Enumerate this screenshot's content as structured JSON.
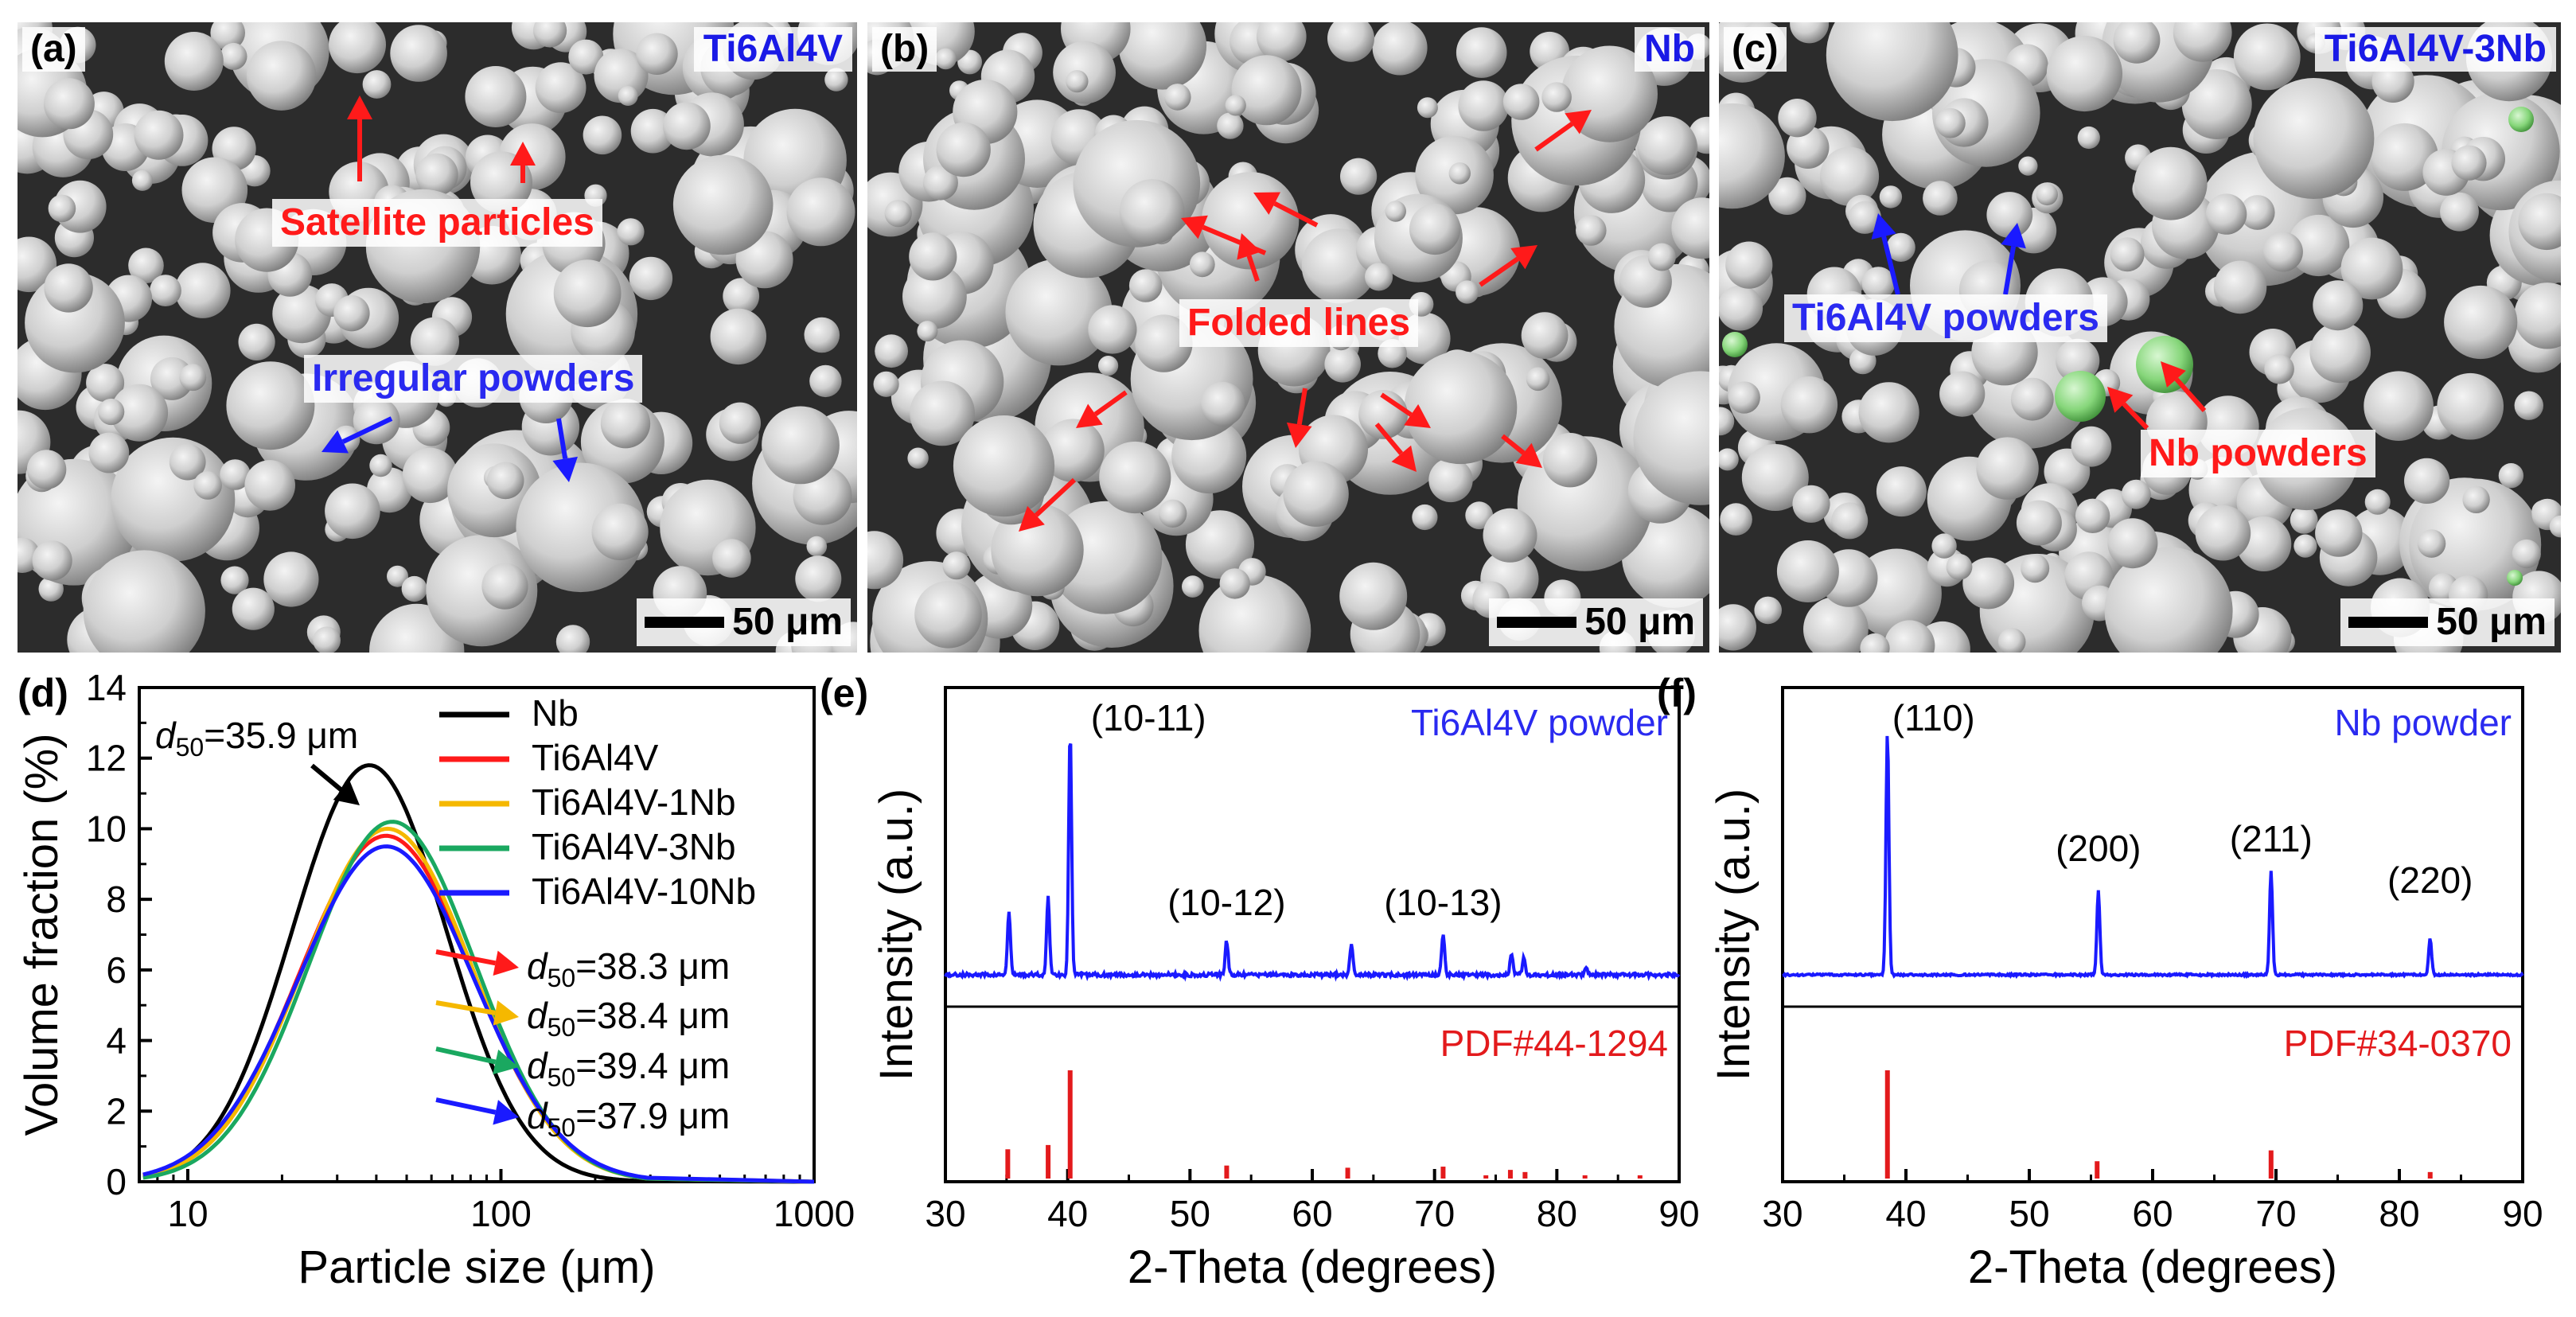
{
  "sem": [
    {
      "letter": "(a)",
      "material": "Ti6Al4V",
      "scale": "50 μm",
      "labels": {
        "satellite": "Satellite particles",
        "irregular": "Irregular powders"
      }
    },
    {
      "letter": "(b)",
      "material": "Nb",
      "scale": "50 μm",
      "labels": {
        "folded": "Folded lines"
      }
    },
    {
      "letter": "(c)",
      "material": "Ti6Al4V-3Nb",
      "scale": "50 μm",
      "labels": {
        "ti": "Ti6Al4V powders",
        "nb": "Nb powders"
      }
    }
  ],
  "colors": {
    "red": "#ff1a1a",
    "blue": "#1a1aff",
    "gold": "#f5b800",
    "green": "#1aa860",
    "black": "#000000",
    "pdf": "#e31a1c",
    "blueLabel": "#2a2af0"
  },
  "chart_data": [
    {
      "type": "line",
      "panel": "(d)",
      "xlabel": "Particle size (μm)",
      "ylabel": "Volume fraction (%)",
      "xscale": "log",
      "xlim": [
        7,
        1000
      ],
      "ylim": [
        0,
        14
      ],
      "xticks": [
        "10",
        "100",
        "1000"
      ],
      "yticks": [
        "0",
        "2",
        "4",
        "6",
        "8",
        "10",
        "12",
        "14"
      ],
      "legend_position": "top-right",
      "series": [
        {
          "name": "Nb",
          "color": "#000000",
          "d50": 35.9,
          "peak_x": 38,
          "peak_y": 11.8,
          "sigma": 0.245
        },
        {
          "name": "Ti6Al4V",
          "color": "#ff1a1a",
          "d50": 38.3,
          "peak_x": 43,
          "peak_y": 9.8,
          "sigma": 0.275
        },
        {
          "name": "Ti6Al4V-1Nb",
          "color": "#f5b800",
          "d50": 38.4,
          "peak_x": 43.5,
          "peak_y": 10.0,
          "sigma": 0.27
        },
        {
          "name": "Ti6Al4V-3Nb",
          "color": "#1aa860",
          "d50": 39.4,
          "peak_x": 45,
          "peak_y": 10.2,
          "sigma": 0.265
        },
        {
          "name": "Ti6Al4V-10Nb",
          "color": "#1a1aff",
          "d50": 37.9,
          "peak_x": 43,
          "peak_y": 9.5,
          "sigma": 0.28
        }
      ],
      "annotations": [
        {
          "prefix": "d",
          "sub": "50",
          "text": "=35.9 μm",
          "color": "#000000"
        },
        {
          "prefix": "d",
          "sub": "50",
          "text": "=38.3 μm",
          "color": "#ff1a1a"
        },
        {
          "prefix": "d",
          "sub": "50",
          "text": "=38.4 μm",
          "color": "#f5b800"
        },
        {
          "prefix": "d",
          "sub": "50",
          "text": "=39.4 μm",
          "color": "#1aa860"
        },
        {
          "prefix": "d",
          "sub": "50",
          "text": "=37.9 μm",
          "color": "#1a1aff"
        }
      ]
    },
    {
      "type": "line",
      "panel": "(e)",
      "title": "Ti6Al4V powder",
      "reference": "PDF#44-1294",
      "xlabel": "2-Theta (degrees)",
      "ylabel": "Intensity (a.u.)",
      "xlim": [
        30,
        90
      ],
      "xticks": [
        "30",
        "40",
        "50",
        "60",
        "70",
        "80",
        "90"
      ],
      "peaks": [
        {
          "x": 35.2,
          "h": 0.26
        },
        {
          "x": 38.4,
          "h": 0.32
        },
        {
          "x": 40.2,
          "h": 1.0
        },
        {
          "x": 53.0,
          "h": 0.14
        },
        {
          "x": 63.2,
          "h": 0.13
        },
        {
          "x": 70.7,
          "h": 0.17
        },
        {
          "x": 76.3,
          "h": 0.09
        },
        {
          "x": 77.3,
          "h": 0.07
        },
        {
          "x": 82.4,
          "h": 0.03
        }
      ],
      "peak_labels": [
        {
          "x": 40.2,
          "text": "(10-11)"
        },
        {
          "x": 53.0,
          "text": "(10-12)"
        },
        {
          "x": 70.7,
          "text": "(10-13)"
        }
      ],
      "ref_lines": [
        {
          "x": 35.1,
          "h": 0.27
        },
        {
          "x": 38.4,
          "h": 0.31
        },
        {
          "x": 40.2,
          "h": 1.0
        },
        {
          "x": 53.0,
          "h": 0.12
        },
        {
          "x": 62.9,
          "h": 0.1
        },
        {
          "x": 70.7,
          "h": 0.11
        },
        {
          "x": 74.2,
          "h": 0.03
        },
        {
          "x": 76.2,
          "h": 0.08
        },
        {
          "x": 77.4,
          "h": 0.06
        },
        {
          "x": 82.3,
          "h": 0.03
        },
        {
          "x": 86.8,
          "h": 0.03
        }
      ]
    },
    {
      "type": "line",
      "panel": "(f)",
      "title": "Nb powder",
      "reference": "PDF#34-0370",
      "xlabel": "2-Theta (degrees)",
      "ylabel": "Intensity (a.u.)",
      "xlim": [
        30,
        90
      ],
      "xticks": [
        "30",
        "40",
        "50",
        "60",
        "70",
        "80",
        "90"
      ],
      "peaks": [
        {
          "x": 38.5,
          "h": 1.0
        },
        {
          "x": 55.6,
          "h": 0.35
        },
        {
          "x": 69.6,
          "h": 0.43
        },
        {
          "x": 82.5,
          "h": 0.15
        }
      ],
      "peak_labels": [
        {
          "x": 38.5,
          "text": "(110)"
        },
        {
          "x": 55.6,
          "text": "(200)"
        },
        {
          "x": 69.6,
          "text": "(211)"
        },
        {
          "x": 82.5,
          "text": "(220)"
        }
      ],
      "ref_lines": [
        {
          "x": 38.5,
          "h": 1.0
        },
        {
          "x": 55.5,
          "h": 0.16
        },
        {
          "x": 69.6,
          "h": 0.26
        },
        {
          "x": 82.5,
          "h": 0.06
        }
      ]
    }
  ]
}
